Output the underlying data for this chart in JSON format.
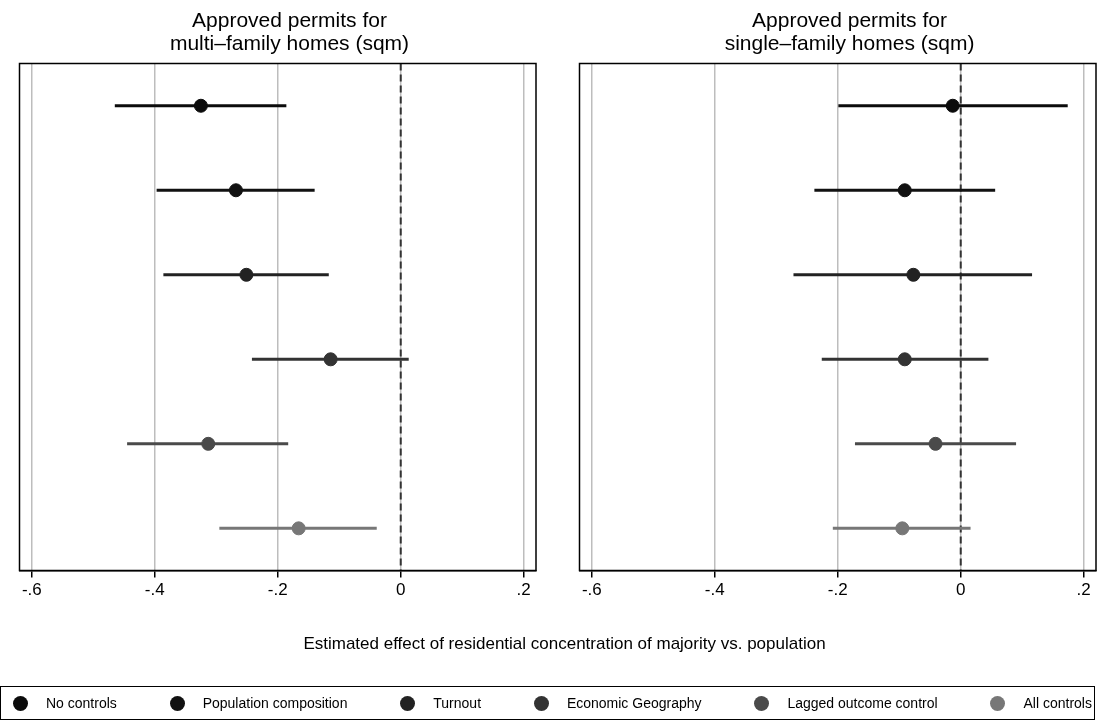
{
  "chart_data": [
    {
      "type": "scatter",
      "title": "Approved permits for multi–family homes (sqm)",
      "xlabel": "Estimated effect of residential concentration of majority vs. population",
      "orientation": "horizontal",
      "categories": [
        null,
        null,
        null,
        null,
        null,
        null
      ],
      "xlim": [
        -0.62,
        0.22
      ],
      "xticks": [
        {
          "value": -0.6,
          "label": "-.6"
        },
        {
          "value": -0.4,
          "label": "-.4"
        },
        {
          "value": -0.2,
          "label": "-.2"
        },
        0,
        {
          "value": 0.2,
          "label": ".2"
        }
      ],
      "tick_labels": "x",
      "grid": "x",
      "marker": "circle",
      "legend": "bottom",
      "ref_lines": [
        {
          "axis": "x",
          "value": 0,
          "color": "#333333",
          "line_style": "dashed"
        }
      ],
      "series": [
        {
          "name": "No controls",
          "color": "#0b0b0b",
          "values": [
            -0.325,
            null,
            null,
            null,
            null,
            null
          ],
          "errors": [
            [
              -0.465,
              -0.186
            ],
            null,
            null,
            null,
            null,
            null
          ]
        },
        {
          "name": "Population composition",
          "color": "#111111",
          "values": [
            null,
            -0.268,
            null,
            null,
            null,
            null
          ],
          "errors": [
            null,
            [
              -0.397,
              -0.14
            ],
            null,
            null,
            null,
            null
          ]
        },
        {
          "name": "Turnout",
          "color": "#222222",
          "values": [
            null,
            null,
            -0.251,
            null,
            null,
            null
          ],
          "errors": [
            null,
            null,
            [
              -0.386,
              -0.117
            ],
            null,
            null,
            null
          ]
        },
        {
          "name": "Economic Geography",
          "color": "#333333",
          "values": [
            null,
            null,
            null,
            -0.114,
            null,
            null
          ],
          "errors": [
            null,
            null,
            null,
            [
              -0.242,
              0.013
            ],
            null,
            null
          ]
        },
        {
          "name": "Lagged outcome control",
          "color": "#4a4a4a",
          "values": [
            null,
            null,
            null,
            null,
            -0.313,
            null
          ],
          "errors": [
            null,
            null,
            null,
            null,
            [
              -0.445,
              -0.183
            ],
            null
          ]
        },
        {
          "name": "All controls",
          "color": "#777777",
          "values": [
            null,
            null,
            null,
            null,
            null,
            -0.166
          ],
          "errors": [
            null,
            null,
            null,
            null,
            null,
            [
              -0.295,
              -0.039
            ]
          ]
        }
      ]
    },
    {
      "type": "scatter",
      "title": "Approved permits for single–family homes (sqm)",
      "orientation": "horizontal",
      "categories": [
        null,
        null,
        null,
        null,
        null,
        null
      ],
      "xlim": [
        -0.62,
        0.22
      ],
      "xticks": [
        {
          "value": -0.6,
          "label": "-.6"
        },
        {
          "value": -0.4,
          "label": "-.4"
        },
        {
          "value": -0.2,
          "label": "-.2"
        },
        0,
        {
          "value": 0.2,
          "label": ".2"
        }
      ],
      "tick_labels": "x",
      "grid": "x",
      "marker": "circle",
      "ref_lines": [
        {
          "axis": "x",
          "value": 0,
          "color": "#333333",
          "line_style": "dashed"
        }
      ],
      "series": [
        {
          "color": "#0b0b0b",
          "values": [
            -0.013,
            null,
            null,
            null,
            null,
            null
          ],
          "errors": [
            [
              -0.199,
              0.174
            ],
            null,
            null,
            null,
            null,
            null
          ]
        },
        {
          "color": "#111111",
          "values": [
            null,
            -0.091,
            null,
            null,
            null,
            null
          ],
          "errors": [
            null,
            [
              -0.238,
              0.056
            ],
            null,
            null,
            null,
            null
          ]
        },
        {
          "color": "#222222",
          "values": [
            null,
            null,
            -0.077,
            null,
            null,
            null
          ],
          "errors": [
            null,
            null,
            [
              -0.272,
              0.116
            ],
            null,
            null,
            null
          ]
        },
        {
          "color": "#333333",
          "values": [
            null,
            null,
            null,
            -0.091,
            null,
            null
          ],
          "errors": [
            null,
            null,
            null,
            [
              -0.226,
              0.045
            ],
            null,
            null
          ]
        },
        {
          "color": "#4a4a4a",
          "values": [
            null,
            null,
            null,
            null,
            -0.041,
            null
          ],
          "errors": [
            null,
            null,
            null,
            null,
            [
              -0.172,
              0.09
            ],
            null
          ]
        },
        {
          "color": "#777777",
          "values": [
            null,
            null,
            null,
            null,
            null,
            -0.095
          ],
          "errors": [
            null,
            null,
            null,
            null,
            null,
            [
              -0.208,
              0.016
            ]
          ]
        }
      ]
    }
  ]
}
